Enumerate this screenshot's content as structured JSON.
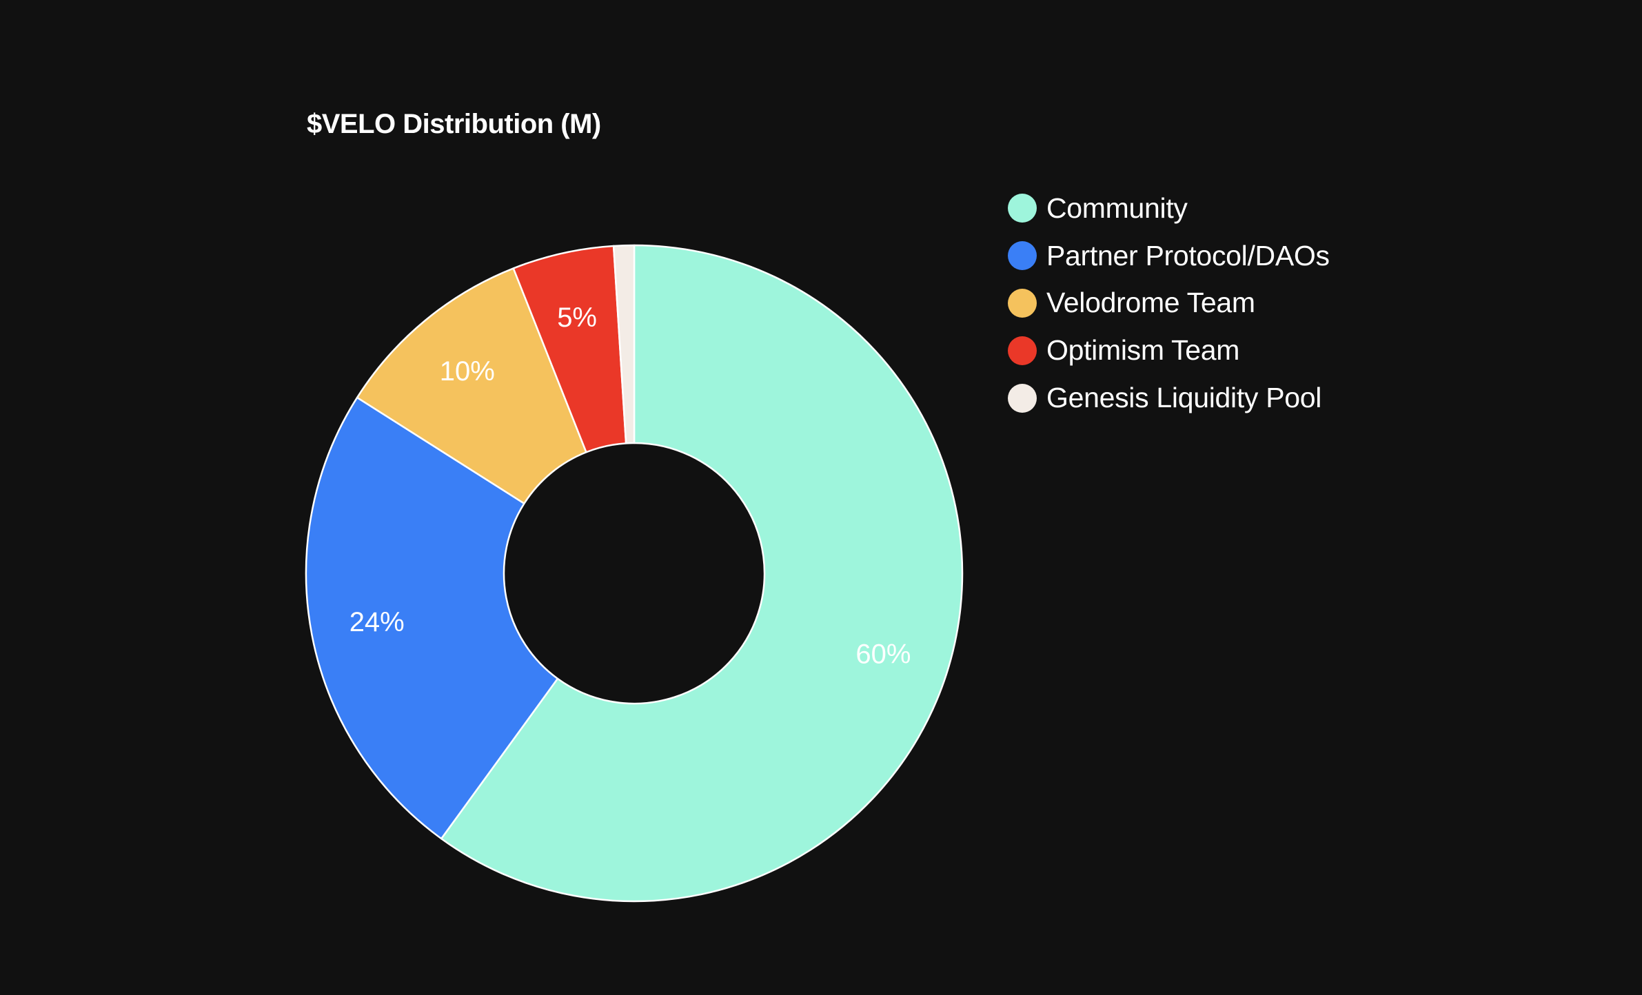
{
  "chart_data": {
    "type": "pie",
    "title": "$VELO Distribution (M)",
    "donut": true,
    "legend_position": "right",
    "slices": [
      {
        "name": "Community",
        "percent": 60,
        "label": "60%",
        "color": "#9ef5dc",
        "label_color": "#ffffff"
      },
      {
        "name": "Partner Protocol/DAOs",
        "percent": 24,
        "label": "24%",
        "color": "#3a7ff6",
        "label_color": "#ffffff"
      },
      {
        "name": "Velodrome Team",
        "percent": 10,
        "label": "10%",
        "color": "#f5c25d",
        "label_color": "#ffffff"
      },
      {
        "name": "Optimism Team",
        "percent": 5,
        "label": "5%",
        "color": "#ea3828",
        "label_color": "#ffffff"
      },
      {
        "name": "Genesis Liquidity Pool",
        "percent": 1,
        "label": "",
        "color": "#f3ece6",
        "label_color": "#ffffff"
      }
    ]
  }
}
